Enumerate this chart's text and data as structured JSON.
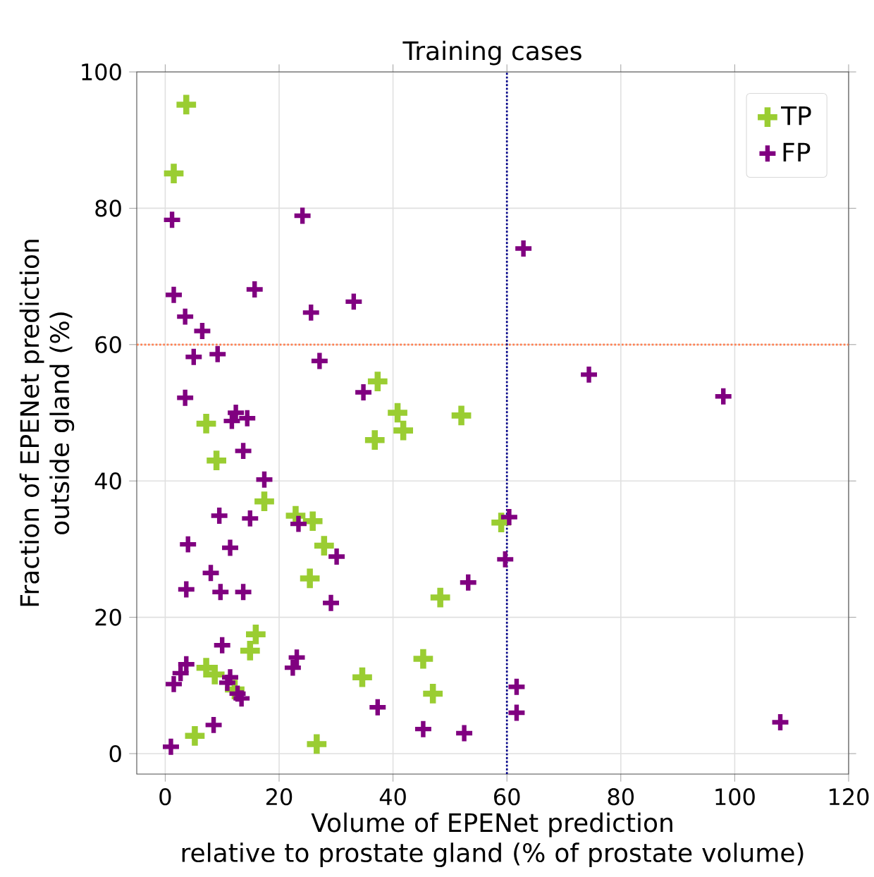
{
  "chart_data": {
    "type": "scatter",
    "title": "Training cases",
    "xlabel": "Volume of EPENet prediction\nrelative to prostate gland (% of prostate volume)",
    "ylabel": "Fraction of EPENet prediction\noutside gland (%)",
    "xlim": [
      -5,
      120
    ],
    "ylim": [
      -3,
      100
    ],
    "xticks": [
      0,
      20,
      40,
      60,
      80,
      100,
      120
    ],
    "yticks": [
      0,
      20,
      40,
      60,
      80,
      100
    ],
    "grid": true,
    "legend": "top right",
    "marker": "cross",
    "ref_lines": [
      {
        "axis": "y",
        "value": 60,
        "color": "#ff7f50",
        "line_style": "dotted"
      },
      {
        "axis": "x",
        "value": 60,
        "color": "#00008b",
        "line_style": "dotted"
      }
    ],
    "series": [
      {
        "name": "TP",
        "color": "#9acd32",
        "x": [
          3.7,
          1.5,
          37.3,
          36.8,
          40.8,
          41.8,
          52,
          7.2,
          9,
          17.4,
          22.9,
          25.9,
          27.9,
          25.4,
          59,
          48.3,
          45.3,
          47,
          34.6,
          15.9,
          14.9,
          7.2,
          8.7,
          12.2,
          5.2,
          26.6
        ],
        "values": [
          95.2,
          85.1,
          54.6,
          46,
          50,
          47.4,
          49.6,
          48.4,
          43,
          37,
          34.9,
          34.1,
          30.5,
          25.7,
          33.9,
          22.9,
          13.9,
          8.8,
          11.2,
          17.5,
          15.1,
          12.6,
          11.6,
          9.4,
          2.6,
          1.4
        ]
      },
      {
        "name": "FP",
        "color": "#800080",
        "x": [
          1.2,
          24.1,
          62.9,
          1.5,
          3.5,
          6.5,
          15.7,
          25.6,
          33.1,
          5,
          9.2,
          27.1,
          3.5,
          34.8,
          74.4,
          98,
          12.4,
          11.7,
          14.4,
          13.7,
          17.4,
          9.5,
          14.9,
          23.4,
          60.4,
          4,
          11.4,
          30.1,
          59.7,
          8,
          3.7,
          9.7,
          13.7,
          29.1,
          53.2,
          10,
          23.1,
          22.4,
          3.7,
          2.7,
          1.5,
          11.4,
          10.9,
          12.7,
          13.4,
          8.5,
          1,
          37.3,
          61.7,
          61.7,
          45.3,
          52.5,
          108
        ],
        "values": [
          78.3,
          78.9,
          74.1,
          67.3,
          64.1,
          62,
          68.1,
          64.7,
          66.3,
          58.2,
          58.6,
          57.6,
          52.2,
          53,
          55.6,
          52.4,
          50,
          48.8,
          49.2,
          44.4,
          40.2,
          34.9,
          34.5,
          33.7,
          34.7,
          30.7,
          30.2,
          28.9,
          28.5,
          26.5,
          24.1,
          23.7,
          23.7,
          22.1,
          25.1,
          15.9,
          14.1,
          12.6,
          13.1,
          11.8,
          10.2,
          11.2,
          10.4,
          8.8,
          8.1,
          4.2,
          1,
          6.8,
          9.8,
          6,
          3.6,
          3,
          4.6
        ]
      }
    ]
  }
}
